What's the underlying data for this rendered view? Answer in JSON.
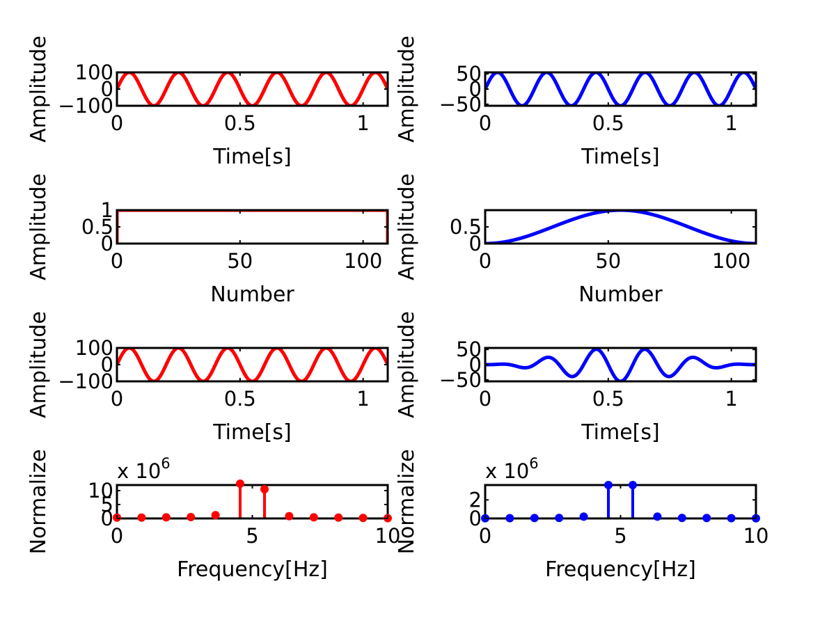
{
  "chart_data": [
    {
      "type": "line",
      "xlabel": "Time[s]",
      "ylabel": "Amplitude",
      "xlim": [
        0,
        1.1
      ],
      "ylim": [
        -100,
        100
      ],
      "xticks": [
        0,
        0.5,
        1
      ],
      "xtick_labels": [
        "0",
        "0.5",
        "1"
      ],
      "yticks": [
        -100,
        0,
        100
      ],
      "ytick_labels": [
        "−100",
        "0",
        "100"
      ],
      "color": "#ff0000",
      "series": [
        {
          "kind": "sine",
          "amplitude": 100,
          "frequency_hz": 5,
          "x_start": 0,
          "x_end": 1.1
        }
      ]
    },
    {
      "type": "line",
      "xlabel": "Time[s]",
      "ylabel": "Amplitude",
      "xlim": [
        0,
        1.1
      ],
      "ylim": [
        -55,
        55
      ],
      "xticks": [
        0,
        0.5,
        1
      ],
      "xtick_labels": [
        "0",
        "0.5",
        "1"
      ],
      "yticks": [
        -50,
        0,
        50
      ],
      "ytick_labels": [
        "−50",
        "0",
        "50"
      ],
      "color": "#0000ff",
      "series": [
        {
          "kind": "sine",
          "amplitude": 55,
          "frequency_hz": 5,
          "x_start": 0,
          "x_end": 1.1
        }
      ]
    },
    {
      "type": "line",
      "xlabel": "Number",
      "ylabel": "Amplitude",
      "xlim": [
        0,
        110
      ],
      "ylim": [
        0,
        1
      ],
      "xticks": [
        0,
        50,
        100
      ],
      "xtick_labels": [
        "0",
        "50",
        "100"
      ],
      "yticks": [
        0,
        0.5,
        1
      ],
      "ytick_labels": [
        "0",
        "0.5",
        "1"
      ],
      "color": "#ff0000",
      "series": [
        {
          "kind": "rect",
          "x_start": 0,
          "x_end": 110
        }
      ]
    },
    {
      "type": "line",
      "xlabel": "Number",
      "ylabel": "Amplitude",
      "xlim": [
        0,
        110
      ],
      "ylim": [
        0,
        1
      ],
      "xticks": [
        0,
        50,
        100
      ],
      "xtick_labels": [
        "0",
        "50",
        "100"
      ],
      "yticks": [
        0,
        0.5
      ],
      "ytick_labels": [
        "0",
        "0.5"
      ],
      "color": "#0000ff",
      "series": [
        {
          "kind": "hann",
          "x_start": 0,
          "x_end": 110
        }
      ]
    },
    {
      "type": "line",
      "xlabel": "Time[s]",
      "ylabel": "Amplitude",
      "xlim": [
        0,
        1.1
      ],
      "ylim": [
        -100,
        100
      ],
      "xticks": [
        0,
        0.5,
        1
      ],
      "xtick_labels": [
        "0",
        "0.5",
        "1"
      ],
      "yticks": [
        -100,
        0,
        100
      ],
      "ytick_labels": [
        "−100",
        "0",
        "100"
      ],
      "color": "#ff0000",
      "series": [
        {
          "kind": "sine",
          "amplitude": 100,
          "frequency_hz": 5,
          "x_start": 0,
          "x_end": 1.1
        }
      ]
    },
    {
      "type": "line",
      "xlabel": "Time[s]",
      "ylabel": "Amplitude",
      "xlim": [
        0,
        1.1
      ],
      "ylim": [
        -55,
        55
      ],
      "xticks": [
        0,
        0.5,
        1
      ],
      "xtick_labels": [
        "0",
        "0.5",
        "1"
      ],
      "yticks": [
        -50,
        0,
        50
      ],
      "ytick_labels": [
        "−50",
        "0",
        "50"
      ],
      "color": "#0000ff",
      "series": [
        {
          "kind": "windowed_sine",
          "amplitude": 55,
          "frequency_hz": 5,
          "x_start": 0,
          "x_end": 1.1
        }
      ]
    },
    {
      "type": "scatter",
      "subtype": "stem",
      "xlabel": "Frequency[Hz]",
      "ylabel": "Normalize",
      "multiplier_label": "x 10",
      "multiplier_exponent": "6",
      "xlim": [
        0,
        10
      ],
      "ylim": [
        0,
        12
      ],
      "xticks": [
        0,
        5,
        10
      ],
      "xtick_labels": [
        "0",
        "5",
        "10"
      ],
      "yticks": [
        0,
        5,
        10
      ],
      "ytick_labels": [
        "0",
        "5",
        "10"
      ],
      "color": "#ff0000",
      "x": [
        0,
        0.91,
        1.82,
        2.73,
        3.64,
        4.55,
        5.45,
        6.36,
        7.27,
        8.18,
        9.09,
        10
      ],
      "y": [
        0.3,
        0.3,
        0.4,
        0.5,
        1.2,
        12.5,
        10.5,
        0.8,
        0.4,
        0.3,
        0.2,
        0.1
      ]
    },
    {
      "type": "scatter",
      "subtype": "stem",
      "xlabel": "Frequency[Hz]",
      "ylabel": "Normalize",
      "multiplier_label": "x 10",
      "multiplier_exponent": "6",
      "xlim": [
        0,
        10
      ],
      "ylim": [
        0,
        3.6
      ],
      "xticks": [
        0,
        5,
        10
      ],
      "xtick_labels": [
        "0",
        "5",
        "10"
      ],
      "yticks": [
        0,
        2
      ],
      "ytick_labels": [
        "0",
        "2"
      ],
      "color": "#0000ff",
      "x": [
        0,
        0.91,
        1.82,
        2.73,
        3.64,
        4.55,
        5.45,
        6.36,
        7.27,
        8.18,
        9.09,
        10
      ],
      "y": [
        0.02,
        0.03,
        0.05,
        0.06,
        0.2,
        3.6,
        3.6,
        0.2,
        0.06,
        0.05,
        0.03,
        0.02
      ]
    }
  ]
}
